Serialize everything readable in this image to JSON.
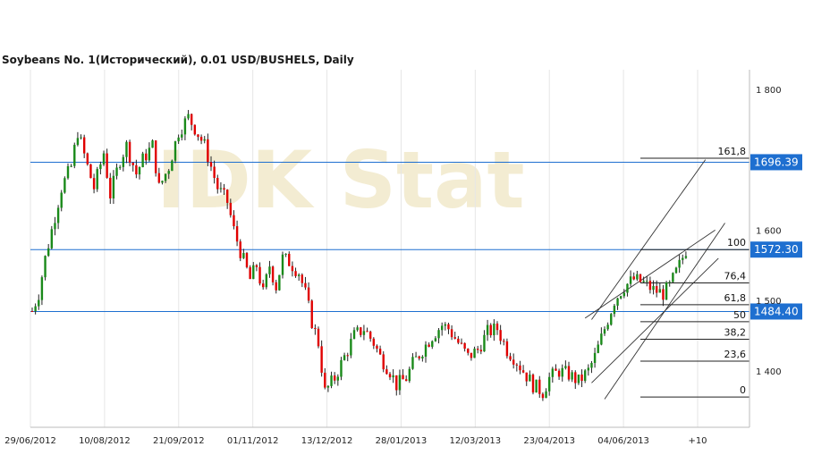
{
  "title": "Soybeans  No. 1(Исторический), 0.01 USD/BUSHELS, Daily",
  "watermark": "IDK Stat",
  "colors": {
    "up": "#1a8a1a",
    "down": "#e00000",
    "level": "#1e6fd0",
    "grid": "#e6e6e6"
  },
  "chart_data": {
    "type": "candlestick",
    "title": "Soybeans  No. 1(Исторический), 0.01 USD/BUSHELS, Daily",
    "y_ticks": [
      {
        "v": 1400,
        "label": "1 400"
      },
      {
        "v": 1500,
        "label": "1 500"
      },
      {
        "v": 1600,
        "label": "1 600"
      },
      {
        "v": 1800,
        "label": "1 800"
      }
    ],
    "x_ticks": [
      "29/06/2012",
      "10/08/2012",
      "21/09/2012",
      "01/11/2012",
      "13/12/2012",
      "28/01/2013",
      "12/03/2013",
      "23/04/2013",
      "04/06/2013",
      "+10"
    ],
    "ylim": [
      1320,
      1815
    ],
    "levels": [
      {
        "value": 1696.39,
        "label": "1696.39"
      },
      {
        "value": 1572.3,
        "label": "1572.30"
      },
      {
        "value": 1484.4,
        "label": "1484.40"
      }
    ],
    "fibonacci": [
      {
        "ratio": "161,8",
        "value": 1702
      },
      {
        "ratio": "100",
        "value": 1572.3
      },
      {
        "ratio": "76,4",
        "value": 1525
      },
      {
        "ratio": "61,8",
        "value": 1494
      },
      {
        "ratio": "50",
        "value": 1470
      },
      {
        "ratio": "38,2",
        "value": 1445
      },
      {
        "ratio": "23,6",
        "value": 1414
      },
      {
        "ratio": "0",
        "value": 1363
      }
    ],
    "path": [
      [
        0,
        1485
      ],
      [
        2,
        1510
      ],
      [
        4,
        1560
      ],
      [
        7,
        1620
      ],
      [
        9,
        1660
      ],
      [
        12,
        1690
      ],
      [
        14,
        1740
      ],
      [
        17,
        1690
      ],
      [
        19,
        1660
      ],
      [
        22,
        1710
      ],
      [
        24,
        1650
      ],
      [
        27,
        1700
      ],
      [
        29,
        1720
      ],
      [
        32,
        1680
      ],
      [
        34,
        1700
      ],
      [
        37,
        1720
      ],
      [
        39,
        1660
      ],
      [
        42,
        1690
      ],
      [
        45,
        1740
      ],
      [
        48,
        1760
      ],
      [
        50,
        1745
      ],
      [
        53,
        1720
      ],
      [
        55,
        1690
      ],
      [
        57,
        1660
      ],
      [
        60,
        1640
      ],
      [
        62,
        1600
      ],
      [
        64,
        1570
      ],
      [
        67,
        1530
      ],
      [
        69,
        1550
      ],
      [
        71,
        1510
      ],
      [
        73,
        1550
      ],
      [
        75,
        1520
      ],
      [
        77,
        1560
      ],
      [
        79,
        1555
      ],
      [
        82,
        1540
      ],
      [
        84,
        1510
      ],
      [
        86,
        1470
      ],
      [
        88,
        1440
      ],
      [
        90,
        1370
      ],
      [
        93,
        1390
      ],
      [
        96,
        1420
      ],
      [
        99,
        1450
      ],
      [
        102,
        1460
      ],
      [
        105,
        1440
      ],
      [
        107,
        1420
      ],
      [
        110,
        1400
      ],
      [
        112,
        1380
      ],
      [
        115,
        1390
      ],
      [
        117,
        1410
      ],
      [
        120,
        1430
      ],
      [
        123,
        1450
      ],
      [
        126,
        1465
      ],
      [
        128,
        1460
      ],
      [
        131,
        1440
      ],
      [
        134,
        1420
      ],
      [
        137,
        1430
      ],
      [
        140,
        1455
      ],
      [
        143,
        1460
      ],
      [
        146,
        1430
      ],
      [
        148,
        1420
      ],
      [
        151,
        1400
      ],
      [
        154,
        1380
      ],
      [
        157,
        1370
      ],
      [
        159,
        1390
      ],
      [
        162,
        1400
      ],
      [
        165,
        1395
      ],
      [
        168,
        1385
      ],
      [
        171,
        1400
      ],
      [
        173,
        1420
      ],
      [
        176,
        1460
      ],
      [
        179,
        1500
      ],
      [
        182,
        1520
      ],
      [
        185,
        1530
      ],
      [
        188,
        1525
      ],
      [
        191,
        1515
      ],
      [
        194,
        1510
      ],
      [
        196,
        1520
      ],
      [
        199,
        1550
      ],
      [
        201,
        1572
      ]
    ]
  }
}
